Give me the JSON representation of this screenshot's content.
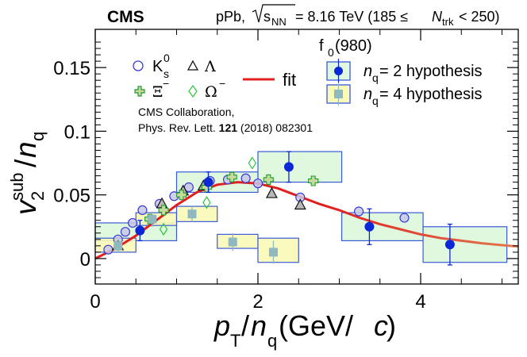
{
  "chart_data": {
    "type": "scatter",
    "header": {
      "experiment": "CMS",
      "system": "pPb, ",
      "energy_symbol": "s",
      "energy_subscript": "NN",
      "energy_value": " = 8.16 TeV (185 ≤ ",
      "ntrk_symbol": "N",
      "ntrk_subscript": "trk",
      "ntrk_tail": " < 250)"
    },
    "xaxis": {
      "title_main": "p",
      "title_sub_T": "T",
      "title_slash": "/",
      "title_n": "n",
      "title_sub_q": "q",
      "title_units": " (GeV/",
      "title_c": "c",
      "title_close": ")",
      "range": [
        0,
        5.2
      ],
      "ticks": [
        {
          "value": 0,
          "label": "0"
        },
        {
          "value": 2,
          "label": "2"
        },
        {
          "value": 4,
          "label": "4"
        }
      ]
    },
    "yaxis": {
      "title_v": "v",
      "title_sup": "sub",
      "title_sub": "2",
      "title_slash": "/",
      "title_n": "n",
      "title_sub_q": "q",
      "range": [
        -0.02,
        0.18
      ],
      "ticks": [
        {
          "value": 0,
          "label": "0"
        },
        {
          "value": 0.05,
          "label": "0.05"
        },
        {
          "value": 0.1,
          "label": "0.1"
        },
        {
          "value": 0.15,
          "label": "0.15"
        }
      ]
    },
    "legend": {
      "ks0": "K",
      "ks0_sup": "0",
      "ks0_sub": "s",
      "lambda": "Λ",
      "xi": "Ξ",
      "xi_sup": "−",
      "omega": "Ω",
      "omega_sup": "−",
      "fit": "fit",
      "f0_title": "f",
      "f0_sub": "0",
      "f0_tail": "(980)",
      "nq2_n": "n",
      "nq2_sub": "q",
      "nq2_tail": " = 2 hypothesis",
      "nq4_n": "n",
      "nq4_sub": "q",
      "nq4_tail": " = 4 hypothesis"
    },
    "reference": {
      "line1": "CMS Collaboration,",
      "line2_pre": "Phys. Rev. Lett. ",
      "line2_vol": "121",
      "line2_post": " (2018) 082301"
    },
    "colors": {
      "ks0": "#3a3ad6",
      "ks0_fill": "#c8c8e8",
      "lambda": "#111111",
      "lambda_fill": "#b8b8b8",
      "xi": "#1f9a2a",
      "xi_fill": "#c8d8a0",
      "omega": "#2ec43a",
      "fit_red": "#e02020",
      "fit_orange": "#e07a50",
      "nq2_marker": "#0a28d8",
      "nq2_box_fill": "#dff8de",
      "nq2_box_stroke": "#3a5ad8",
      "nq4_marker": "#8fb8c0",
      "nq4_box_fill": "#fafab8",
      "nq4_box_stroke": "#3a5ad8"
    },
    "series": [
      {
        "name": "Ks0",
        "marker": "circle",
        "points": [
          [
            0.16,
            0.007
          ],
          [
            0.28,
            0.015
          ],
          [
            0.37,
            0.021
          ],
          [
            0.46,
            0.028
          ],
          [
            0.58,
            0.038
          ],
          [
            0.79,
            0.043
          ],
          [
            0.97,
            0.049
          ],
          [
            1.15,
            0.056
          ],
          [
            1.41,
            0.061
          ],
          [
            1.63,
            0.062
          ],
          [
            1.85,
            0.063
          ],
          [
            2.0,
            0.059
          ],
          [
            2.52,
            0.048
          ],
          [
            3.24,
            0.037
          ],
          [
            3.8,
            0.032
          ]
        ]
      },
      {
        "name": "Lambda",
        "marker": "triangle",
        "points": [
          [
            0.28,
            0.01
          ],
          [
            0.82,
            0.043
          ],
          [
            1.08,
            0.053
          ],
          [
            1.33,
            0.057
          ],
          [
            2.17,
            0.051
          ],
          [
            2.52,
            0.042
          ]
        ]
      },
      {
        "name": "Xi",
        "marker": "cross",
        "points": [
          [
            0.67,
            0.031
          ],
          [
            0.84,
            0.038
          ],
          [
            1.06,
            0.05
          ],
          [
            1.37,
            0.056
          ],
          [
            1.68,
            0.064
          ],
          [
            2.13,
            0.062
          ],
          [
            2.68,
            0.061
          ]
        ]
      },
      {
        "name": "Omega",
        "marker": "diamond",
        "points": [
          [
            0.84,
            0.023
          ],
          [
            1.37,
            0.044
          ],
          [
            1.93,
            0.075
          ]
        ]
      },
      {
        "name": "f0(980) nq=2 hypothesis",
        "marker": "filled-circle",
        "points": [
          {
            "x": 0.55,
            "y": 0.022,
            "err": 0.008,
            "box_x": [
              0,
              1.0
            ],
            "box_y": [
              0.014,
              0.028
            ]
          },
          {
            "x": 1.39,
            "y": 0.06,
            "err": 0.008,
            "box_x": [
              1.0,
              2.0
            ],
            "box_y": [
              0.052,
              0.068
            ]
          },
          {
            "x": 2.38,
            "y": 0.072,
            "err": 0.012,
            "box_x": [
              2.0,
              3.03
            ],
            "box_y": [
              0.06,
              0.084
            ]
          },
          {
            "x": 3.37,
            "y": 0.025,
            "err": 0.014,
            "box_x": [
              3.03,
              4.03
            ],
            "box_y": [
              0.014,
              0.036
            ]
          },
          {
            "x": 4.36,
            "y": 0.011,
            "err": 0.016,
            "box_x": [
              4.03,
              5.06
            ],
            "box_y": [
              -0.003,
              0.025
            ]
          }
        ]
      },
      {
        "name": "f0(980) nq=4 hypothesis",
        "marker": "filled-square",
        "points": [
          {
            "x": 0.28,
            "y": 0.01,
            "err": 0.005,
            "box_x": [
              0,
              0.5
            ],
            "box_y": [
              0.005,
              0.016
            ]
          },
          {
            "x": 0.7,
            "y": 0.031,
            "err": 0.006,
            "box_x": [
              0.5,
              1.0
            ],
            "box_y": [
              0.026,
              0.036
            ]
          },
          {
            "x": 1.19,
            "y": 0.035,
            "err": 0.006,
            "box_x": [
              1.0,
              1.5
            ],
            "box_y": [
              0.029,
              0.041
            ]
          },
          {
            "x": 1.69,
            "y": 0.013,
            "err": 0.007,
            "box_x": [
              1.5,
              2.0
            ],
            "box_y": [
              0.008,
              0.019
            ]
          },
          {
            "x": 2.19,
            "y": 0.005,
            "err": 0.009,
            "box_x": [
              2.0,
              2.5
            ],
            "box_y": [
              -0.003,
              0.016
            ]
          }
        ]
      }
    ],
    "fit": {
      "name": "fit",
      "points": [
        [
          0.0,
          0.0
        ],
        [
          0.25,
          0.008
        ],
        [
          0.5,
          0.018
        ],
        [
          0.75,
          0.03
        ],
        [
          1.0,
          0.042
        ],
        [
          1.25,
          0.052
        ],
        [
          1.5,
          0.058
        ],
        [
          1.75,
          0.06
        ],
        [
          2.0,
          0.059
        ],
        [
          2.25,
          0.055
        ],
        [
          2.5,
          0.049
        ],
        [
          2.75,
          0.043
        ],
        [
          3.0,
          0.038
        ],
        [
          3.25,
          0.032
        ],
        [
          3.5,
          0.027
        ],
        [
          3.75,
          0.023
        ],
        [
          4.0,
          0.019
        ],
        [
          4.25,
          0.016
        ],
        [
          4.5,
          0.014
        ],
        [
          4.75,
          0.012
        ],
        [
          5.0,
          0.0105
        ],
        [
          5.2,
          0.0095
        ]
      ]
    }
  }
}
